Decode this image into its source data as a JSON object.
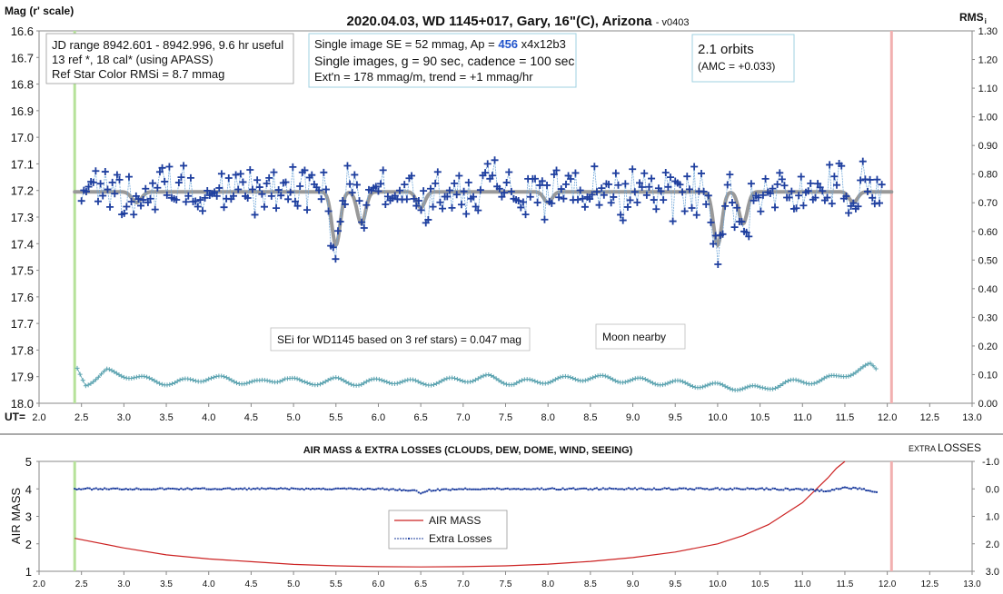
{
  "chart_data": [
    {
      "type": "scatter",
      "title": "2020.04.03, WD 1145+017, Gary, 16\"(C), Arizona",
      "version": "- v0403",
      "ylabel_left": "Mag (r' scale)",
      "ylabel_right": "RMS i",
      "xlabel": "UT=",
      "xlim": [
        2.0,
        13.0
      ],
      "x_ticks": [
        "2.0",
        "2.5",
        "3.0",
        "3.5",
        "4.0",
        "4.5",
        "5.0",
        "5.5",
        "6.0",
        "6.5",
        "7.0",
        "7.5",
        "8.0",
        "8.5",
        "9.0",
        "9.5",
        "10.0",
        "10.5",
        "11.0",
        "11.5",
        "12.0",
        "12.5",
        "13.0"
      ],
      "ylim": [
        16.6,
        18.0
      ],
      "y_ticks": [
        "16.6",
        "16.7",
        "16.8",
        "16.9",
        "17.0",
        "17.1",
        "17.2",
        "17.3",
        "17.4",
        "17.5",
        "17.6",
        "17.7",
        "17.8",
        "17.9",
        "18.0"
      ],
      "ylim_right": [
        0.0,
        1.3
      ],
      "y_ticks_right": [
        "1.30",
        "1.20",
        "1.10",
        "1.00",
        "0.90",
        "0.80",
        "0.70",
        "0.60",
        "0.50",
        "0.40",
        "0.30",
        "0.20",
        "0.10",
        "0.00"
      ],
      "start_marker_x": 2.42,
      "end_marker_x": 12.05,
      "boxes": {
        "jd_lines": [
          "JD range 8942.601 - 8942.996, 9.6 hr useful",
          "13 ref *, 18 cal* (using APASS)",
          "Ref Star Color RMSi = 8.7 mmag"
        ],
        "single_line1_pre": "Single image SE = 52 mmag, Ap = ",
        "single_line1_ap": "456",
        "single_line1_post": " x4x12b3",
        "single_line2": "Single images, g = 90 sec, cadence = 100 sec",
        "single_line3": "Ext'n = 178 mmag/m, trend = +1 mmag/hr",
        "orbits": "2.1 orbits",
        "amc": "(AMC = +0.033)",
        "sei": "SEi for WD1145 based on 3 ref stars) = 0.047 mag",
        "moon": "Moon nearby"
      },
      "series": [
        {
          "name": "",
          "role": "magnitude measurements",
          "color": "#1f3f9f",
          "baseline": 17.2,
          "dips": [
            {
              "t": 3.15,
              "depth": 0.04,
              "width": 0.08
            },
            {
              "t": 5.5,
              "depth": 0.2,
              "width": 0.07
            },
            {
              "t": 5.8,
              "depth": 0.12,
              "width": 0.07
            },
            {
              "t": 6.5,
              "depth": 0.06,
              "width": 0.07
            },
            {
              "t": 8.0,
              "depth": 0.04,
              "width": 0.07
            },
            {
              "t": 10.0,
              "depth": 0.2,
              "width": 0.07
            },
            {
              "t": 10.3,
              "depth": 0.12,
              "width": 0.07
            },
            {
              "t": 11.6,
              "depth": 0.04,
              "width": 0.07
            }
          ]
        },
        {
          "name": "",
          "role": "model fit",
          "color": "#999999",
          "x_range": [
            2.42,
            12.05
          ]
        },
        {
          "name": "",
          "role": "RMS scatter",
          "color": "#5ba3b0",
          "points": [
            [
              2.45,
              0.12
            ],
            [
              2.55,
              0.07
            ],
            [
              2.7,
              0.09
            ],
            [
              2.8,
              0.11
            ],
            [
              3.0,
              0.1
            ],
            [
              3.3,
              0.08
            ],
            [
              3.6,
              0.07
            ],
            [
              4.0,
              0.09
            ],
            [
              4.3,
              0.08
            ],
            [
              4.6,
              0.07
            ],
            [
              4.9,
              0.09
            ],
            [
              5.1,
              0.07
            ],
            [
              5.5,
              0.08
            ],
            [
              5.8,
              0.07
            ],
            [
              6.1,
              0.08
            ],
            [
              6.5,
              0.07
            ],
            [
              6.9,
              0.08
            ],
            [
              7.3,
              0.09
            ],
            [
              7.6,
              0.07
            ],
            [
              8.0,
              0.08
            ],
            [
              8.5,
              0.09
            ],
            [
              9.0,
              0.08
            ],
            [
              9.5,
              0.07
            ],
            [
              10.0,
              0.06
            ],
            [
              10.5,
              0.05
            ],
            [
              10.8,
              0.07
            ],
            [
              11.2,
              0.08
            ],
            [
              11.4,
              0.09
            ],
            [
              11.6,
              0.11
            ],
            [
              11.8,
              0.13
            ],
            [
              11.9,
              0.11
            ]
          ]
        }
      ]
    },
    {
      "type": "line",
      "title": "AIR MASS & EXTRA LOSSES (CLOUDS, DEW, DOME, WIND, SEEING)",
      "ylabel_left": "AIR MASS",
      "ylabel_right_prefix": "EXTRA",
      "ylabel_right_main": "LOSSES",
      "xlim": [
        2.0,
        13.0
      ],
      "x_ticks": [
        "2.0",
        "2.5",
        "3.0",
        "3.5",
        "4.0",
        "4.5",
        "5.0",
        "5.5",
        "6.0",
        "6.5",
        "7.0",
        "7.5",
        "8.0",
        "8.5",
        "9.0",
        "9.5",
        "10.0",
        "10.5",
        "11.0",
        "11.5",
        "12.0",
        "12.5",
        "13.0"
      ],
      "ylim": [
        1,
        5
      ],
      "y_ticks": [
        "1",
        "2",
        "3",
        "4",
        "5"
      ],
      "ylim_right": [
        -1.0,
        3.0
      ],
      "y_ticks_right": [
        "-1.0",
        "0.0",
        "1.0",
        "2.0",
        "3.0"
      ],
      "start_marker_x": 2.42,
      "end_marker_x": 12.05,
      "legend": [
        "AIR MASS",
        "Extra Losses"
      ],
      "series": [
        {
          "name": "AIR MASS",
          "color": "#cc2222",
          "x": [
            2.42,
            3.0,
            3.5,
            4.0,
            4.5,
            5.0,
            5.5,
            6.0,
            6.5,
            7.0,
            7.5,
            8.0,
            8.5,
            9.0,
            9.5,
            10.0,
            10.3,
            10.6,
            10.8,
            11.0,
            11.2,
            11.3,
            11.4,
            11.5
          ],
          "values": [
            2.2,
            1.85,
            1.6,
            1.45,
            1.35,
            1.25,
            1.2,
            1.17,
            1.16,
            1.17,
            1.2,
            1.26,
            1.36,
            1.5,
            1.7,
            2.0,
            2.3,
            2.7,
            3.1,
            3.5,
            4.1,
            4.4,
            4.75,
            5.0
          ]
        },
        {
          "name": "Extra Losses",
          "color": "#1f3f9f",
          "x": [
            2.42,
            3.0,
            4.0,
            5.0,
            6.0,
            6.4,
            6.5,
            6.6,
            7.0,
            8.0,
            9.0,
            10.0,
            10.5,
            11.0,
            11.3,
            11.5,
            11.7,
            11.9
          ],
          "values": [
            0.0,
            0.0,
            0.0,
            0.0,
            0.0,
            0.05,
            0.15,
            0.05,
            0.0,
            0.0,
            0.0,
            0.0,
            0.0,
            0.02,
            0.08,
            -0.05,
            0.0,
            0.12
          ]
        }
      ]
    }
  ]
}
